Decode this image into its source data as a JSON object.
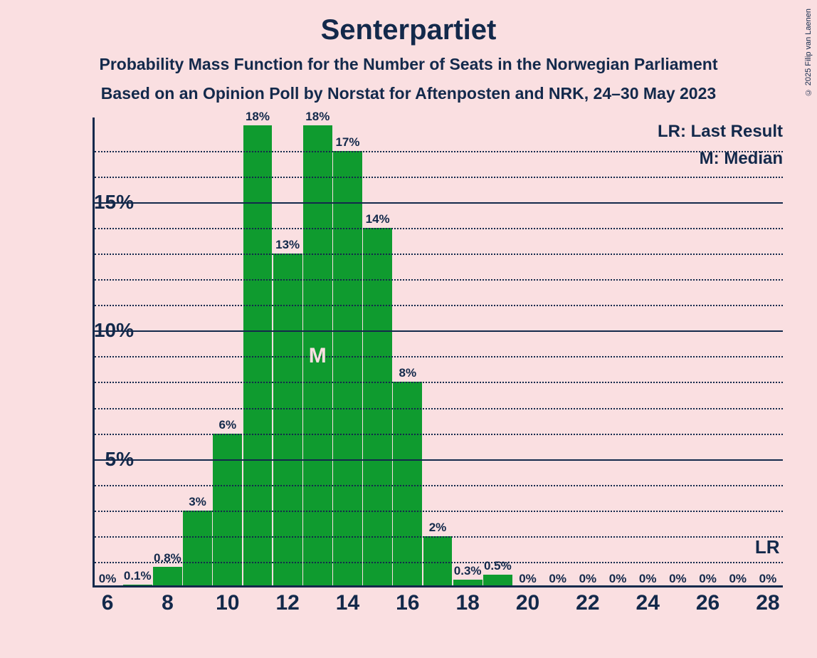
{
  "title": "Senterpartiet",
  "subtitle1": "Probability Mass Function for the Number of Seats in the Norwegian Parliament",
  "subtitle2": "Based on an Opinion Poll by Norstat for Aftenposten and NRK, 24–30 May 2023",
  "copyright": "© 2025 Filip van Laenen",
  "legend": {
    "lr": "LR: Last Result",
    "m": "M: Median",
    "lr_short": "LR"
  },
  "chart": {
    "type": "bar",
    "background_color": "#fadfe1",
    "bar_color": "#0f9b2f",
    "axis_color": "#13294b",
    "text_color": "#13294b",
    "median_text_color": "#fadfe1",
    "title_fontsize": 40,
    "subtitle_fontsize": 23,
    "axis_label_fontsize": 28,
    "tick_fontsize": 30,
    "bar_label_fontsize": 17,
    "legend_fontsize": 24,
    "x_categories": [
      6,
      7,
      8,
      9,
      10,
      11,
      12,
      13,
      14,
      15,
      16,
      17,
      18,
      19,
      20,
      21,
      22,
      23,
      24,
      25,
      26,
      27,
      28
    ],
    "x_tick_labels": [
      6,
      8,
      10,
      12,
      14,
      16,
      18,
      20,
      22,
      24,
      26,
      28
    ],
    "y_major_ticks": [
      5,
      10,
      15
    ],
    "y_minor_step": 1,
    "ylim": [
      0,
      18.3
    ],
    "bar_width_rel": 0.97,
    "median_x": 13,
    "median_label": "M",
    "lr_x": 28,
    "bars": [
      {
        "x": 6,
        "v": 0,
        "label": "0%"
      },
      {
        "x": 7,
        "v": 0.1,
        "label": "0.1%"
      },
      {
        "x": 8,
        "v": 0.8,
        "label": "0.8%"
      },
      {
        "x": 9,
        "v": 3,
        "label": "3%"
      },
      {
        "x": 10,
        "v": 6,
        "label": "6%"
      },
      {
        "x": 11,
        "v": 18,
        "label": "18%"
      },
      {
        "x": 12,
        "v": 13,
        "label": "13%"
      },
      {
        "x": 13,
        "v": 18,
        "label": "18%"
      },
      {
        "x": 14,
        "v": 17,
        "label": "17%"
      },
      {
        "x": 15,
        "v": 14,
        "label": "14%"
      },
      {
        "x": 16,
        "v": 8,
        "label": "8%"
      },
      {
        "x": 17,
        "v": 2,
        "label": "2%"
      },
      {
        "x": 18,
        "v": 0.3,
        "label": "0.3%"
      },
      {
        "x": 19,
        "v": 0.5,
        "label": "0.5%"
      },
      {
        "x": 20,
        "v": 0,
        "label": "0%"
      },
      {
        "x": 21,
        "v": 0,
        "label": "0%"
      },
      {
        "x": 22,
        "v": 0,
        "label": "0%"
      },
      {
        "x": 23,
        "v": 0,
        "label": "0%"
      },
      {
        "x": 24,
        "v": 0,
        "label": "0%"
      },
      {
        "x": 25,
        "v": 0,
        "label": "0%"
      },
      {
        "x": 26,
        "v": 0,
        "label": "0%"
      },
      {
        "x": 27,
        "v": 0,
        "label": "0%"
      },
      {
        "x": 28,
        "v": 0,
        "label": "0%"
      }
    ]
  }
}
